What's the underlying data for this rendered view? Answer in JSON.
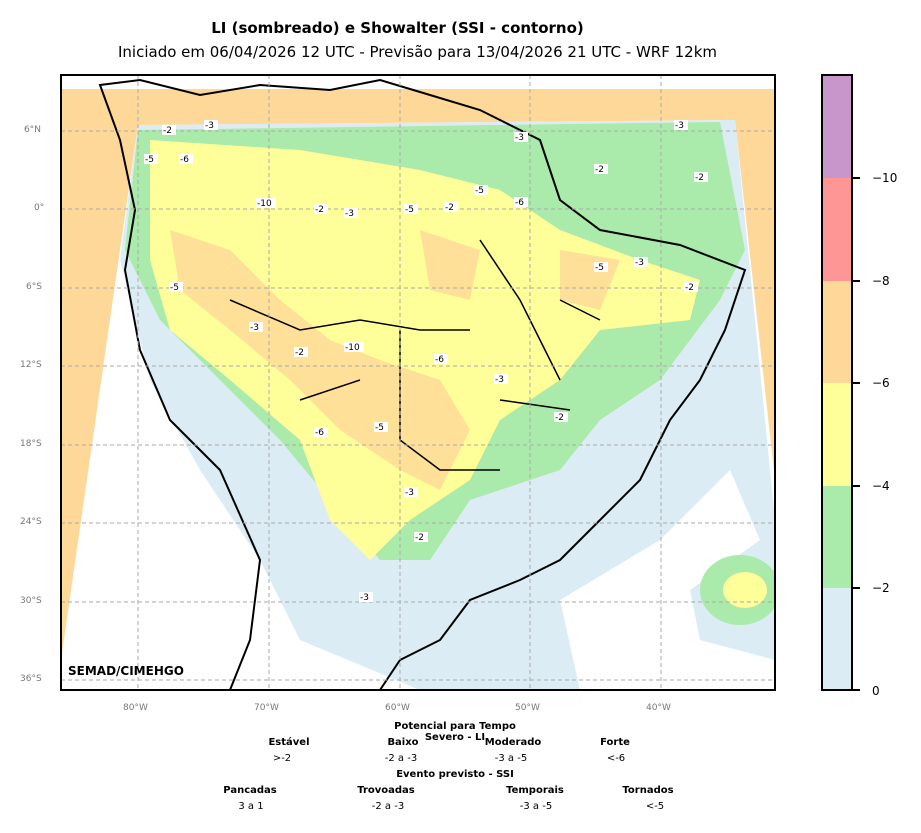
{
  "title": "LI (sombreado) e Showalter (SSI - contorno)",
  "subtitle": "Iniciado em 06/04/2026 12 UTC - Previsão para 13/04/2026 21 UTC - WRF 12km",
  "credit": "SEMAD/CIMEHGO",
  "lat_ticks": [
    "6°N",
    "0°",
    "6°S",
    "12°S",
    "18°S",
    "24°S",
    "30°S",
    "36°S"
  ],
  "lon_ticks": [
    "80°W",
    "70°W",
    "60°W",
    "50°W",
    "40°W"
  ],
  "colorbar": {
    "ticks": [
      "−10",
      "−8",
      "−6",
      "−4",
      "−2",
      "0"
    ],
    "colors": [
      "#c896c8",
      "#ff9696",
      "#fed898",
      "#ffff99",
      "#aaeaaa",
      "#dcecf4"
    ]
  },
  "legend": {
    "li_title": "Potencial para Tempo Severo - LI",
    "li": [
      {
        "label": "Estável",
        "range": ">-2"
      },
      {
        "label": "Baixo",
        "range": "-2 a -3"
      },
      {
        "label": "Moderado",
        "range": "-3 a -5"
      },
      {
        "label": "Forte",
        "range": "<-6"
      }
    ],
    "ssi_title": "Evento previsto - SSI",
    "ssi": [
      {
        "label": "Pancadas",
        "range": "3 a 1"
      },
      {
        "label": "Trovoadas",
        "range": "-2 a -3"
      },
      {
        "label": "Temporais",
        "range": "-3 a -5"
      },
      {
        "label": "Tornados",
        "range": "<-5"
      }
    ]
  },
  "contour_labels": [
    "-2",
    "-3",
    "-5",
    "-6",
    "-10",
    "-2",
    "-3",
    "-5",
    "-2",
    "-3",
    "-5",
    "-6",
    "-2",
    "-3",
    "-2",
    "-5",
    "-3",
    "-2",
    "-10",
    "-6",
    "-3",
    "-2",
    "-5",
    "-3",
    "-2",
    "-6",
    "-5",
    "-3",
    "-2",
    "-3"
  ]
}
